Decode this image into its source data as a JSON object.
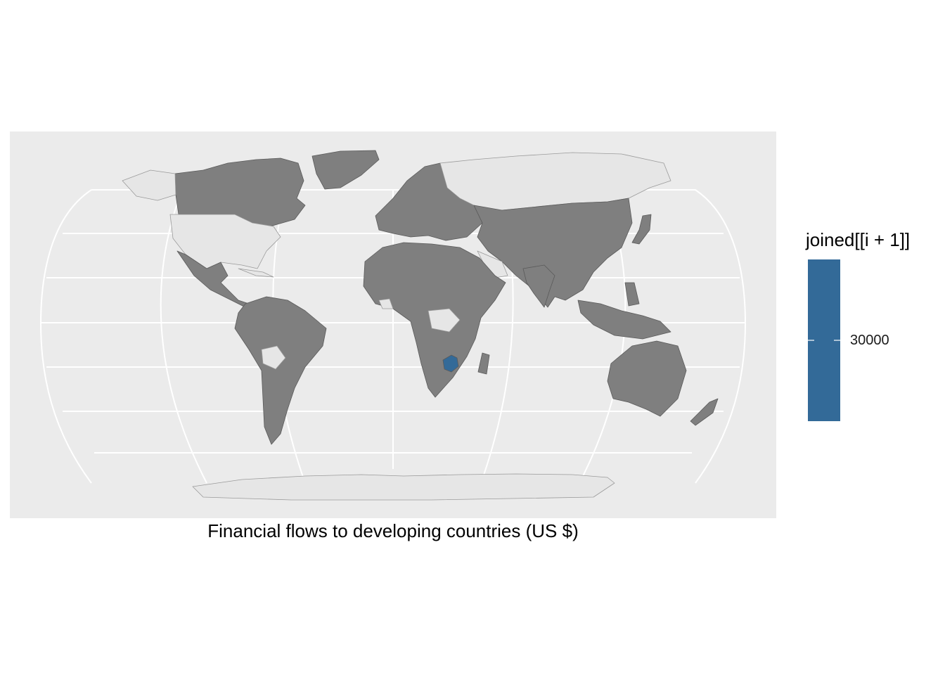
{
  "caption": "Financial flows to developing countries (US $)",
  "legend": {
    "title": "joined[[i + 1]]",
    "tick_label": "30000",
    "bar_color": "#336a98"
  },
  "colors": {
    "panel_background": "#ebebeb",
    "grid": "#ffffff",
    "country_with_data": "#7f7f7f",
    "country_no_data": "#e6e6e6",
    "country_border": "#5a5a5a",
    "highlight": "#336a98"
  },
  "map": {
    "projection": "Robinson",
    "highlighted_country": "Zimbabwe",
    "highlighted_value": 30000
  }
}
